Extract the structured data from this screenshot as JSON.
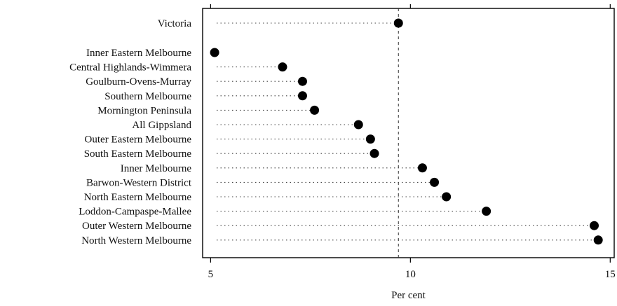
{
  "chart_data": {
    "type": "scatter",
    "subtype": "dot-plot",
    "title": "",
    "xlabel": "Per cent",
    "ylabel": "",
    "xlim": [
      4.8,
      15.1
    ],
    "xticks": [
      5,
      10,
      15
    ],
    "xtick_labels": [
      "5",
      "10",
      "15"
    ],
    "reference_line": 9.7,
    "grid": false,
    "categories": [
      "Victoria",
      "Inner Eastern Melbourne",
      "Central Highlands-Wimmera",
      "Goulburn-Ovens-Murray",
      "Southern Melbourne",
      "Mornington Peninsula",
      "All Gippsland",
      "Outer Eastern Melbourne",
      "South Eastern Melbourne",
      "Inner Melbourne",
      "Barwon-Western District",
      "North Eastern Melbourne",
      "Loddon-Campaspe-Mallee",
      "Outer Western Melbourne",
      "North Western Melbourne"
    ],
    "values": [
      9.7,
      5.1,
      6.8,
      7.3,
      7.3,
      7.6,
      8.7,
      9.0,
      9.1,
      10.3,
      10.6,
      10.9,
      11.9,
      14.6,
      14.7
    ],
    "colors": {
      "dot": "#000000",
      "leader": "#444444",
      "axis": "#000000"
    }
  }
}
